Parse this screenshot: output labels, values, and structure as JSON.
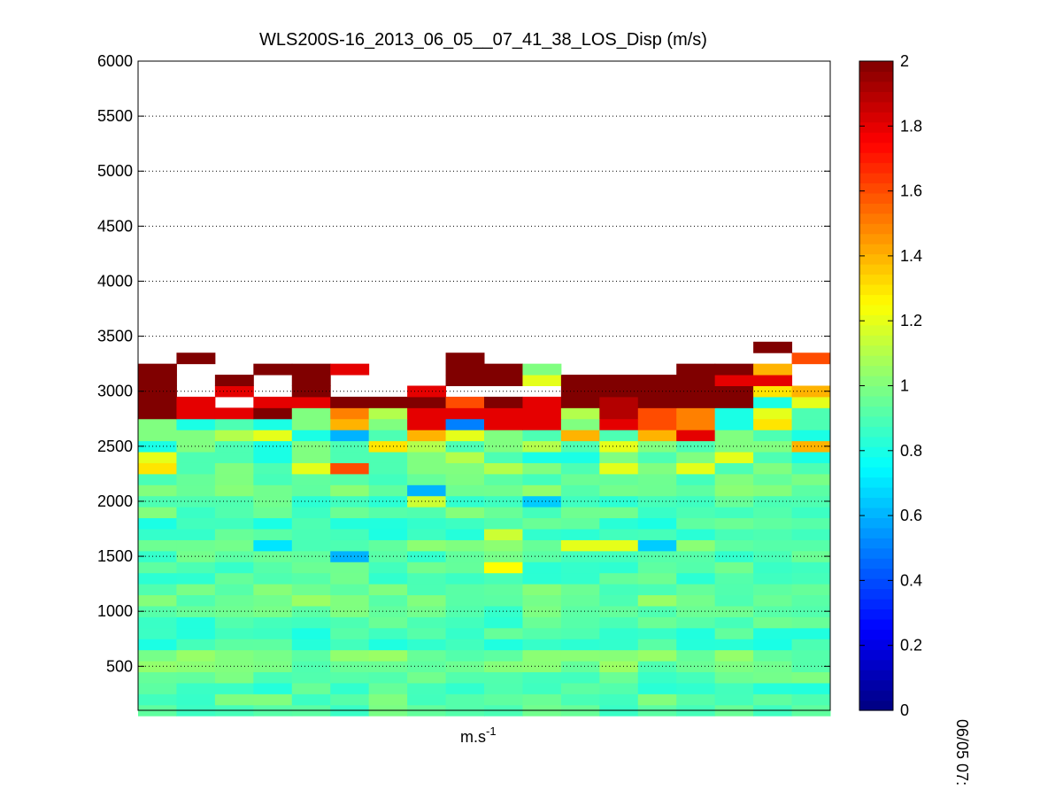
{
  "figure": {
    "title": "WLS200S-16_2013_06_05__07_41_38_LOS_Disp (m/s)",
    "xlabel_base": "m.s",
    "xlabel_superscript": "-1",
    "time_label": "06/05 07:"
  },
  "chart_data": {
    "type": "heatmap",
    "title": "WLS200S-16_2013_06_05__07_41_38_LOS_Disp (m/s)",
    "xlabel": "m.s-1",
    "ylabel": "",
    "y_axis": {
      "ylim": [
        100,
        6000
      ],
      "ticks": [
        500,
        1000,
        1500,
        2000,
        2500,
        3000,
        3500,
        4000,
        4500,
        5000,
        5500,
        6000
      ],
      "grid": "dotted"
    },
    "colorbar": {
      "colormap": "jet",
      "clim": [
        0,
        2
      ],
      "ticks": [
        0,
        0.2,
        0.4,
        0.6,
        0.8,
        1,
        1.2,
        1.4,
        1.6,
        1.8,
        2
      ],
      "tick_labels": [
        "0",
        "0.2",
        "0.4",
        "0.6",
        "0.8",
        "1",
        "1.2",
        "1.4",
        "1.6",
        "1.8",
        "2"
      ]
    },
    "columns": 18,
    "gate_height_m": 100,
    "gate_range_m": [
      100,
      3400
    ],
    "blank_value": null,
    "upper_gates_m": [
      2700,
      2800,
      2900,
      3000,
      3100,
      3200,
      3300
    ],
    "upper_gate_values": [
      [
        1.0,
        0.8,
        0.9,
        0.8,
        1.0,
        1.4,
        1.0,
        1.8,
        0.5,
        1.8,
        1.8,
        1.0,
        1.8,
        1.6,
        1.5,
        0.8,
        1.3,
        0.9
      ],
      [
        2.0,
        1.8,
        1.8,
        2.0,
        1.0,
        1.5,
        1.1,
        1.8,
        1.8,
        1.8,
        1.8,
        1.1,
        1.9,
        1.6,
        1.5,
        0.8,
        1.2,
        0.9
      ],
      [
        2.0,
        1.8,
        null,
        1.8,
        1.8,
        2.0,
        2.0,
        2.0,
        1.6,
        2.0,
        1.8,
        2.0,
        1.9,
        2.0,
        2.0,
        2.0,
        0.8,
        1.2
      ],
      [
        2.0,
        null,
        1.8,
        null,
        2.0,
        null,
        null,
        1.8,
        null,
        null,
        null,
        2.0,
        2.0,
        2.0,
        2.0,
        2.0,
        1.3,
        1.4
      ],
      [
        2.0,
        null,
        2.0,
        null,
        2.0,
        null,
        null,
        null,
        2.0,
        2.0,
        1.2,
        2.0,
        2.0,
        2.0,
        2.0,
        1.8,
        1.8,
        null
      ],
      [
        2.0,
        null,
        null,
        2.0,
        2.0,
        1.8,
        null,
        null,
        2.0,
        2.0,
        1.0,
        null,
        null,
        null,
        2.0,
        2.0,
        1.4,
        null
      ],
      [
        null,
        2.0,
        null,
        null,
        null,
        null,
        null,
        null,
        2.0,
        null,
        null,
        null,
        null,
        null,
        null,
        null,
        null,
        1.6
      ]
    ],
    "top_gate": {
      "y_m": 3400,
      "values": [
        null,
        null,
        null,
        null,
        null,
        null,
        null,
        null,
        null,
        null,
        null,
        null,
        null,
        null,
        null,
        null,
        2.0,
        null
      ]
    },
    "mid_gates_m": [
      2300,
      2400,
      2500,
      2600
    ],
    "mid_gate_values": [
      [
        1.3,
        0.9,
        1.0,
        0.9,
        1.2,
        1.6,
        0.9,
        1.0,
        1.0,
        1.1,
        1.0,
        0.9,
        1.2,
        1.0,
        1.2,
        0.9,
        1.0,
        0.9
      ],
      [
        1.2,
        0.9,
        0.9,
        0.8,
        1.0,
        0.9,
        0.9,
        1.0,
        1.1,
        0.9,
        0.8,
        0.8,
        1.0,
        0.9,
        1.0,
        1.2,
        0.9,
        0.8
      ],
      [
        0.8,
        1.0,
        0.9,
        0.8,
        1.0,
        0.9,
        1.3,
        1.1,
        0.9,
        1.0,
        1.1,
        0.9,
        1.2,
        1.0,
        0.9,
        1.0,
        1.0,
        1.4
      ],
      [
        1.0,
        1.0,
        1.1,
        1.2,
        0.8,
        0.6,
        0.9,
        1.4,
        1.2,
        1.0,
        0.9,
        1.4,
        0.9,
        1.4,
        1.8,
        1.0,
        0.9,
        0.8
      ]
    ],
    "low_gates_note": "gates 100-2200 m mostly 0.8-1.1 m/s with scattered outliers",
    "low_gate_outliers": [
      {
        "col": 3,
        "y_m": 1600,
        "value": 0.7
      },
      {
        "col": 5,
        "y_m": 1500,
        "value": 0.6
      },
      {
        "col": 7,
        "y_m": 2100,
        "value": 0.6
      },
      {
        "col": 9,
        "y_m": 1700,
        "value": 1.15
      },
      {
        "col": 9,
        "y_m": 1400,
        "value": 1.25
      },
      {
        "col": 10,
        "y_m": 2000,
        "value": 0.65
      },
      {
        "col": 11,
        "y_m": 1600,
        "value": 1.2
      },
      {
        "col": 12,
        "y_m": 1600,
        "value": 1.2
      },
      {
        "col": 13,
        "y_m": 1600,
        "value": 0.65
      },
      {
        "col": 7,
        "y_m": 2000,
        "value": 1.15
      }
    ]
  },
  "colors": {
    "background": "#ffffff",
    "axis": "#000000"
  }
}
